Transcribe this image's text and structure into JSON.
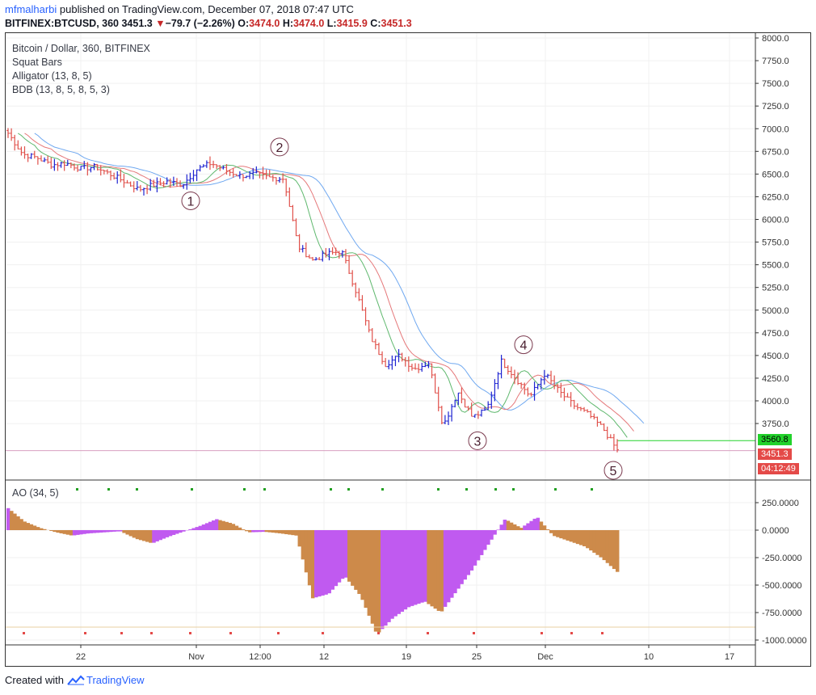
{
  "header": {
    "author": "mfmalharbi",
    "published_text": "published on TradingView.com, December 07, 2018 07:47 UTC"
  },
  "ohlc": {
    "symbol_interval": "BITFINEX:BTCUSD, 360",
    "last": "3451.3",
    "change_arrow": "▼",
    "change": "−79.7 (−2.26%)",
    "o_label": "O:",
    "o_value": "3474.0",
    "h_label": "H:",
    "h_value": "3474.0",
    "l_label": "L:",
    "l_value": "3415.9",
    "c_label": "C:",
    "c_value": "3451.3"
  },
  "legend": {
    "title": "Bitcoin / Dollar, 360, BITFINEX",
    "items": [
      "Squat Bars",
      "Alligator (13, 8, 5)",
      "BDB (13, 8, 5, 8, 5, 3)"
    ]
  },
  "ao_legend": "AO (34, 5)",
  "price_tags": {
    "green": "3560.8",
    "red": "3451.3",
    "timer": "04:12:49"
  },
  "footer": {
    "created_with": "Created with",
    "brand": "TradingView"
  },
  "colors": {
    "up": "#1d23d1",
    "down": "#e0504a",
    "jaw": "#6fa8f0",
    "teeth": "#e5787a",
    "lips": "#5fb86e",
    "ao_purple": "#c05af0",
    "ao_brown": "#cd8a4a",
    "green_tag": "#22d22b",
    "red_tag": "#e44a48"
  },
  "chart_data": [
    {
      "type": "candlestick",
      "title": "Bitcoin / Dollar, 360, BITFINEX",
      "ylim": [
        3300,
        8000
      ],
      "yticks": [
        "8000.0",
        "7750.0",
        "7500.0",
        "7250.0",
        "7000.0",
        "6750.0",
        "6500.0",
        "6250.0",
        "6000.0",
        "5750.0",
        "5500.0",
        "5250.0",
        "5000.0",
        "4750.0",
        "4500.0",
        "4250.0",
        "4000.0",
        "3750.0"
      ],
      "xticks": [
        "22",
        "Nov",
        "12:00",
        "12",
        "19",
        "25",
        "Dec",
        "10",
        "17"
      ],
      "wave_labels": [
        {
          "label": "1",
          "price": 6330
        },
        {
          "label": "2",
          "price": 6620
        },
        {
          "label": "3",
          "price": 3720
        },
        {
          "label": "4",
          "price": 4440
        },
        {
          "label": "5",
          "price": 3430
        }
      ],
      "price_path": [
        6950,
        6720,
        6680,
        6600,
        6620,
        6560,
        6580,
        6500,
        6420,
        6330,
        6380,
        6420,
        6380,
        6550,
        6620,
        6540,
        6480,
        6500,
        6460,
        6450,
        5700,
        5550,
        5620,
        5650,
        5200,
        4700,
        4400,
        4500,
        4350,
        4420,
        3720,
        4100,
        3820,
        3900,
        4440,
        4250,
        4050,
        4300,
        4100,
        3950,
        3850,
        3700,
        3451
      ],
      "last_price": 3451.3,
      "marker_price": 3560.8
    },
    {
      "type": "bar",
      "title": "AO (34, 5)",
      "ylim": [
        -1000,
        350
      ],
      "yticks": [
        "250.0000",
        "0.0000",
        "-250.0000",
        "-500.0000",
        "-750.0000",
        "-1000.0000"
      ],
      "ao_path": [
        200,
        80,
        20,
        -20,
        -50,
        -30,
        -20,
        -10,
        -80,
        -120,
        -60,
        -10,
        40,
        100,
        60,
        -20,
        -15,
        -30,
        -50,
        -620,
        -580,
        -420,
        -600,
        -950,
        -800,
        -700,
        -650,
        -750,
        -550,
        -350,
        -120,
        100,
        20,
        120,
        -50,
        -100,
        -150,
        -250,
        -380
      ]
    }
  ]
}
